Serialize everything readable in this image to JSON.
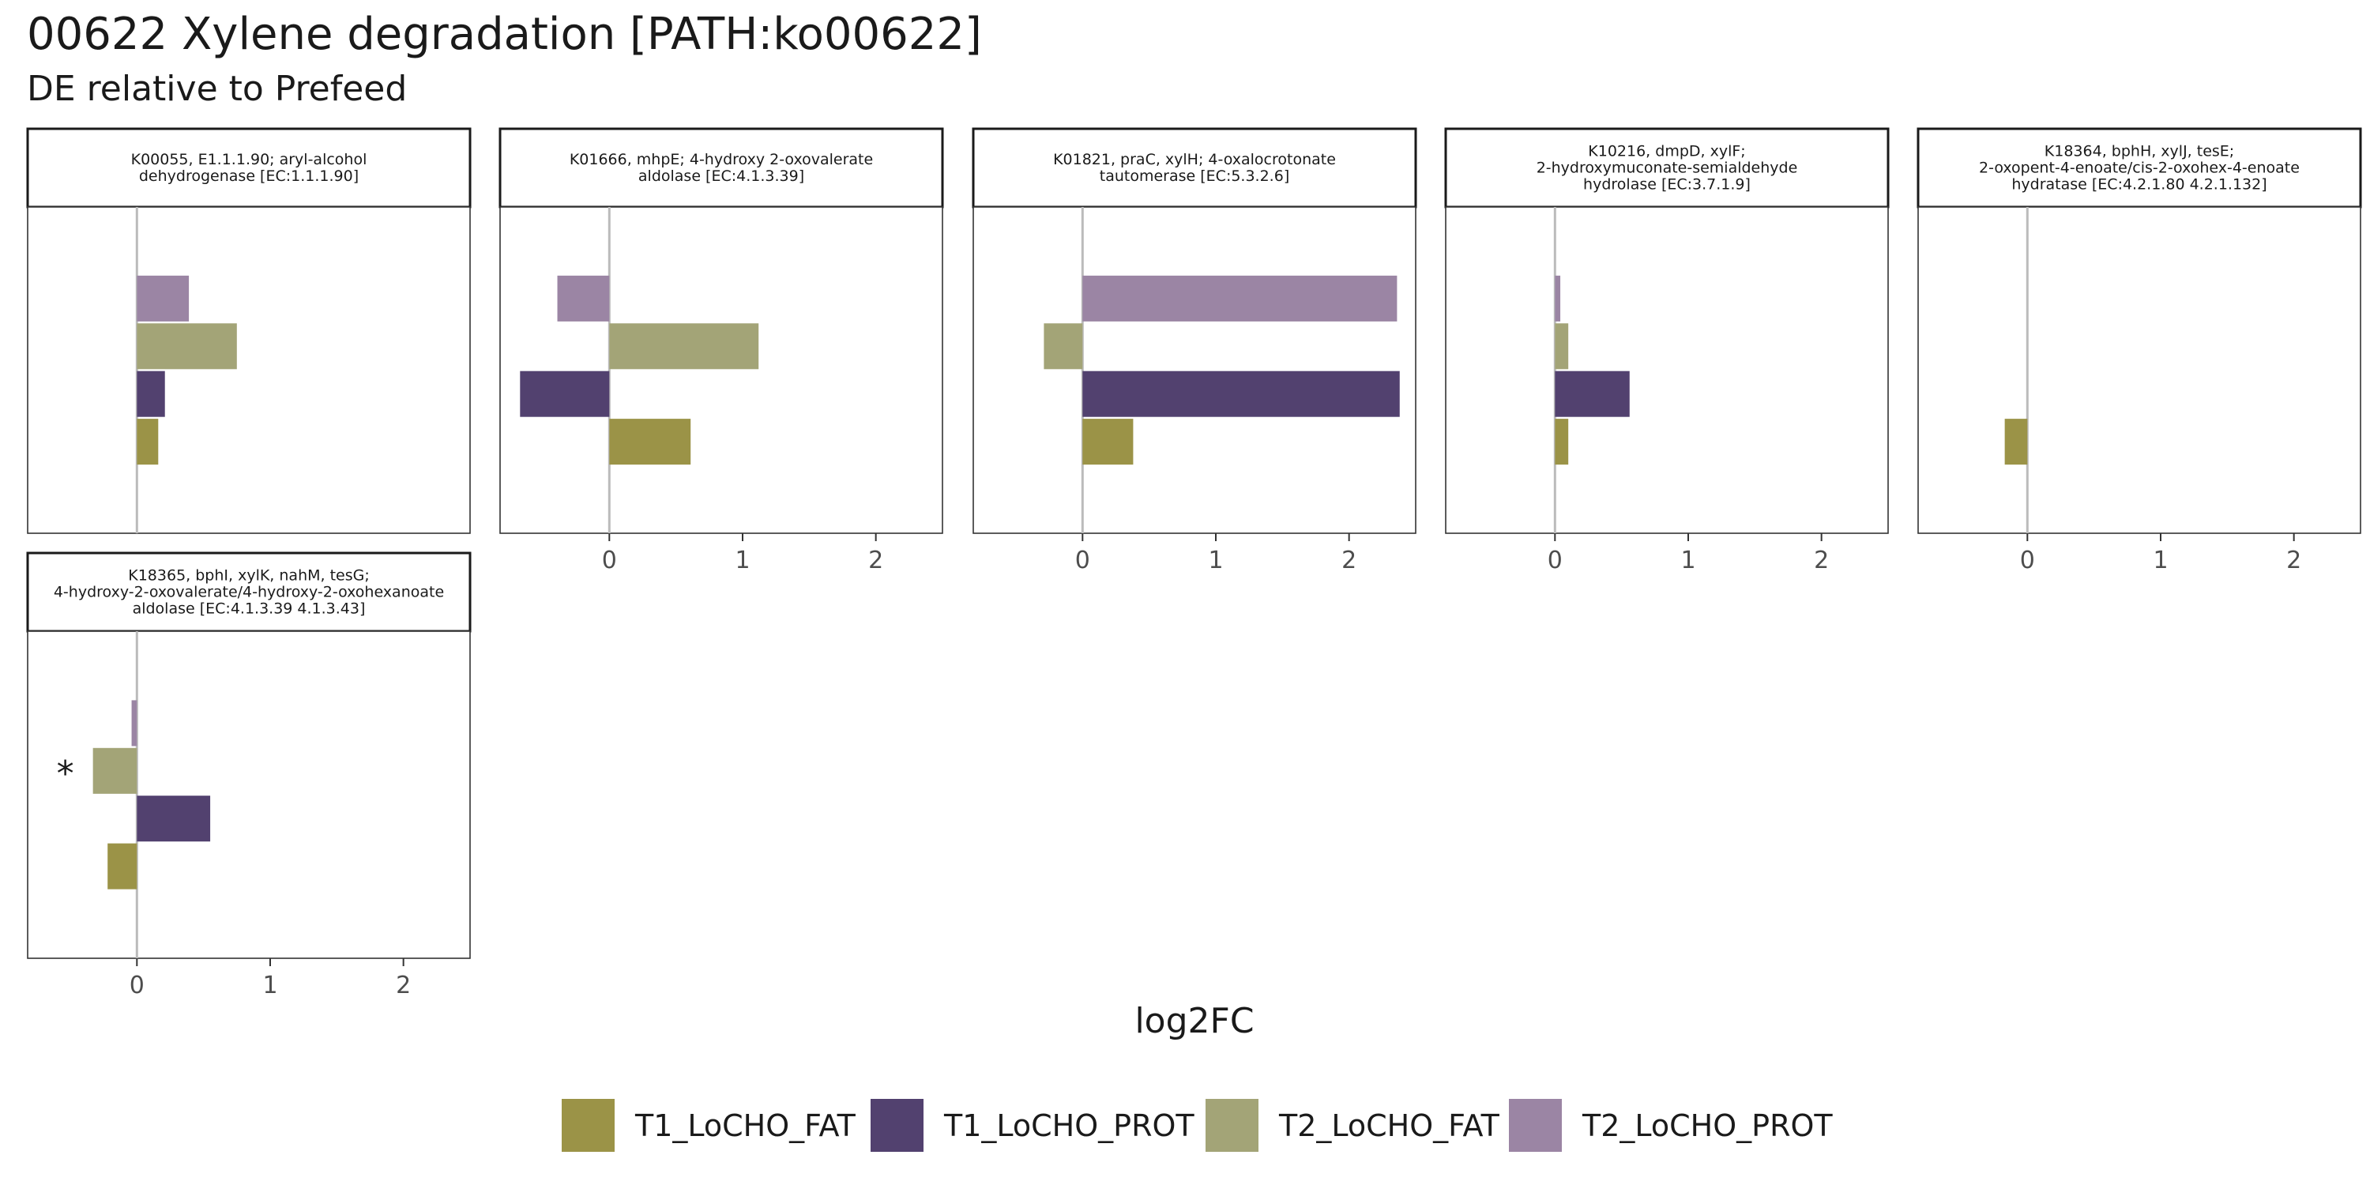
{
  "title": "00622 Xylene degradation [PATH:ko00622]",
  "subtitle": "DE relative to Prefeed",
  "chart_data": {
    "type": "bar",
    "orientation": "horizontal",
    "title": "00622 Xylene degradation [PATH:ko00622]",
    "subtitle": "DE relative to Prefeed",
    "xlabel": "log2FC",
    "ylabel": "",
    "xlim": [
      -0.82,
      2.5
    ],
    "xticks": [
      0,
      1,
      2
    ],
    "grid": false,
    "legend_position": "bottom",
    "series": [
      {
        "name": "T1_LoCHO_FAT",
        "color": "#9b9347"
      },
      {
        "name": "T1_LoCHO_PROT",
        "color": "#52416f"
      },
      {
        "name": "T2_LoCHO_FAT",
        "color": "#a3a477"
      },
      {
        "name": "T2_LoCHO_PROT",
        "color": "#9b85a4"
      }
    ],
    "panels": [
      {
        "strip_label": [
          "K00055, E1.1.1.90; aryl-alcohol",
          "dehydrogenase [EC:1.1.1.90]"
        ],
        "values": {
          "T1_LoCHO_FAT": 0.16,
          "T1_LoCHO_PROT": 0.21,
          "T2_LoCHO_FAT": 0.75,
          "T2_LoCHO_PROT": 0.39
        },
        "annotations": []
      },
      {
        "strip_label": [
          "K01666, mhpE; 4-hydroxy 2-oxovalerate",
          "aldolase [EC:4.1.3.39]"
        ],
        "values": {
          "T1_LoCHO_FAT": 0.61,
          "T1_LoCHO_PROT": -0.67,
          "T2_LoCHO_FAT": 1.12,
          "T2_LoCHO_PROT": -0.39
        },
        "annotations": []
      },
      {
        "strip_label": [
          "K01821, praC, xylH; 4-oxalocrotonate",
          "tautomerase [EC:5.3.2.6]"
        ],
        "values": {
          "T1_LoCHO_FAT": 0.38,
          "T1_LoCHO_PROT": 2.38,
          "T2_LoCHO_FAT": -0.29,
          "T2_LoCHO_PROT": 2.36
        },
        "annotations": []
      },
      {
        "strip_label": [
          "K10216, dmpD, xylF;",
          "2-hydroxymuconate-semialdehyde",
          "hydrolase [EC:3.7.1.9]"
        ],
        "values": {
          "T1_LoCHO_FAT": 0.1,
          "T1_LoCHO_PROT": 0.56,
          "T2_LoCHO_FAT": 0.1,
          "T2_LoCHO_PROT": 0.04
        },
        "annotations": []
      },
      {
        "strip_label": [
          "K18364, bphH, xylJ, tesE;",
          "2-oxopent-4-enoate/cis-2-oxohex-4-enoate",
          "hydratase [EC:4.2.1.80 4.2.1.132]"
        ],
        "values": {
          "T1_LoCHO_FAT": -0.17,
          "T1_LoCHO_PROT": null,
          "T2_LoCHO_FAT": null,
          "T2_LoCHO_PROT": null
        },
        "annotations": []
      },
      {
        "strip_label": [
          "K18365, bphI, xylK, nahM, tesG;",
          "4-hydroxy-2-oxovalerate/4-hydroxy-2-oxohexanoate",
          "aldolase [EC:4.1.3.39 4.1.3.43]"
        ],
        "values": {
          "T1_LoCHO_FAT": -0.22,
          "T1_LoCHO_PROT": 0.55,
          "T2_LoCHO_FAT": -0.33,
          "T2_LoCHO_PROT": -0.04
        },
        "annotations": [
          {
            "series": "T2_LoCHO_FAT",
            "text": "*"
          }
        ]
      }
    ]
  }
}
